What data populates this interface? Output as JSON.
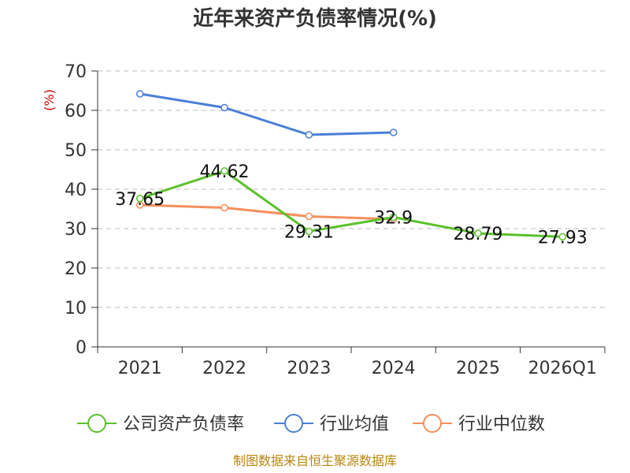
{
  "chart_data": {
    "type": "line",
    "title": "近年来资产负债率情况(%)",
    "ylabel": "(%)",
    "xlabel": "",
    "categories": [
      "2021",
      "2022",
      "2023",
      "2024",
      "2025",
      "2026Q1"
    ],
    "ylim": [
      0,
      70
    ],
    "yticks": [
      0,
      10,
      20,
      30,
      40,
      50,
      60,
      70
    ],
    "grid": true,
    "legend_position": "bottom",
    "series": [
      {
        "name": "公司资产负债率",
        "color": "#5ac02a",
        "values": [
          37.65,
          44.62,
          29.31,
          32.9,
          28.79,
          27.93
        ],
        "labels": [
          "37.65",
          "44.62",
          "29.31",
          "32.9",
          "28.79",
          "27.93"
        ]
      },
      {
        "name": "行业均值",
        "color": "#4a7fd8",
        "values": [
          64.2,
          60.7,
          53.8,
          54.4,
          null,
          null
        ]
      },
      {
        "name": "行业中位数",
        "color": "#f58e5c",
        "values": [
          36.0,
          35.3,
          33.1,
          32.4,
          null,
          null
        ]
      }
    ]
  },
  "source": "制图数据来自恒生聚源数据库"
}
